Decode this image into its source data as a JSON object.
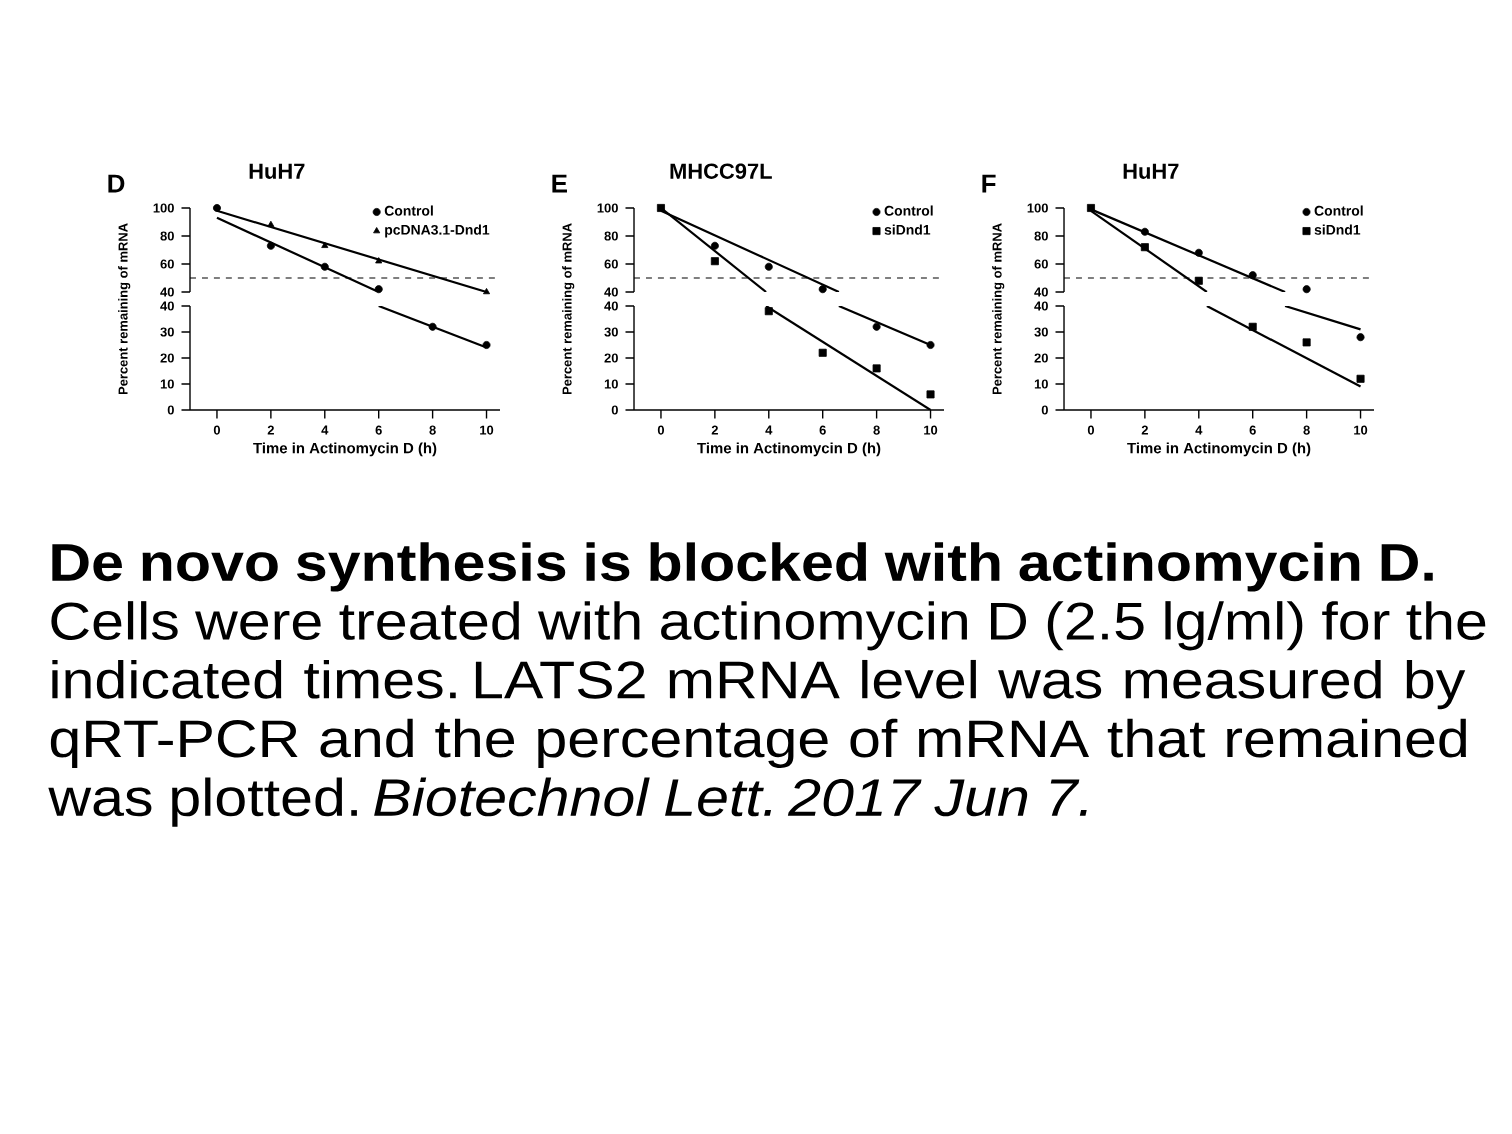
{
  "chart_data": [
    {
      "type": "scatter",
      "title": "HuH7",
      "annotations": [
        "D"
      ],
      "ylabel": "Percent remaining of mRNA",
      "xlim": [
        -1,
        10.5
      ],
      "ylim": [
        40,
        100
      ],
      "yticks": [
        40,
        60,
        80,
        100
      ],
      "tick_labels": "y",
      "legend": "top right",
      "ref_lines": [
        {
          "axis": "y",
          "value": 50,
          "color": "#000000",
          "line_style": "dashed"
        }
      ],
      "series": [
        {
          "name": "Control",
          "color": "#000000",
          "marker": "circle",
          "x": [
            0,
            2,
            4,
            6
          ],
          "values": [
            100,
            73,
            58,
            42
          ]
        },
        {
          "name": "pcDNA3.1-Dnd1",
          "color": "#000000",
          "marker": "triangle",
          "x": [
            2,
            4,
            6,
            10
          ],
          "values": [
            88,
            73,
            62,
            40
          ]
        },
        {
          "type": "line",
          "color": "#000000",
          "marker": "none",
          "x": [
            0,
            6
          ],
          "values": [
            93,
            40
          ]
        },
        {
          "type": "line",
          "color": "#000000",
          "marker": "none",
          "x": [
            0,
            10
          ],
          "values": [
            98,
            40
          ]
        }
      ]
    },
    {
      "type": "scatter",
      "xlabel": "Time in Actinomycin D (h)",
      "xlim": [
        -1,
        10.5
      ],
      "xticks": [
        0,
        2,
        4,
        6,
        8,
        10
      ],
      "ylim": [
        0,
        40
      ],
      "yticks": [
        0,
        10,
        20,
        30,
        40
      ],
      "series": [
        {
          "color": "#000000",
          "marker": "circle",
          "x": [
            8,
            10
          ],
          "values": [
            32,
            25
          ]
        },
        {
          "type": "line",
          "color": "#000000",
          "marker": "none",
          "x": [
            6,
            10
          ],
          "values": [
            40,
            24
          ]
        }
      ]
    },
    {
      "type": "scatter",
      "title": "MHCC97L",
      "annotations": [
        "E"
      ],
      "ylabel": "Percent remaining of mRNA",
      "xlim": [
        -1,
        10.5
      ],
      "ylim": [
        40,
        100
      ],
      "yticks": [
        40,
        60,
        80,
        100
      ],
      "tick_labels": "y",
      "legend": "top right",
      "ref_lines": [
        {
          "axis": "y",
          "value": 50,
          "color": "#000000",
          "line_style": "dashed"
        }
      ],
      "series": [
        {
          "name": "Control",
          "color": "#000000",
          "marker": "circle",
          "x": [
            2,
            4,
            6
          ],
          "values": [
            73,
            58,
            42
          ]
        },
        {
          "name": "siDnd1",
          "color": "#000000",
          "marker": "square",
          "x": [
            0,
            2
          ],
          "values": [
            100,
            62
          ]
        },
        {
          "type": "line",
          "color": "#000000",
          "marker": "none",
          "x": [
            0,
            6.6
          ],
          "values": [
            98,
            40
          ]
        },
        {
          "type": "line",
          "color": "#000000",
          "marker": "none",
          "x": [
            0,
            3.9
          ],
          "values": [
            100,
            40
          ]
        }
      ]
    },
    {
      "type": "scatter",
      "xlabel": "Time in Actinomycin D (h)",
      "xlim": [
        -1,
        10.5
      ],
      "xticks": [
        0,
        2,
        4,
        6,
        8,
        10
      ],
      "ylim": [
        0,
        40
      ],
      "yticks": [
        0,
        10,
        20,
        30,
        40
      ],
      "series": [
        {
          "color": "#000000",
          "marker": "circle",
          "x": [
            8,
            10
          ],
          "values": [
            32,
            25
          ]
        },
        {
          "color": "#000000",
          "marker": "square",
          "x": [
            4,
            6,
            8,
            10
          ],
          "values": [
            38,
            22,
            16,
            6
          ]
        },
        {
          "type": "line",
          "color": "#000000",
          "marker": "none",
          "x": [
            6.6,
            10
          ],
          "values": [
            40,
            25
          ]
        },
        {
          "type": "line",
          "color": "#000000",
          "marker": "none",
          "x": [
            3.9,
            10
          ],
          "values": [
            40,
            0
          ]
        }
      ]
    },
    {
      "type": "scatter",
      "title": "HuH7",
      "annotations": [
        "F"
      ],
      "ylabel": "Percent remaining of mRNA",
      "xlim": [
        -1,
        10.5
      ],
      "ylim": [
        40,
        100
      ],
      "yticks": [
        40,
        60,
        80,
        100
      ],
      "tick_labels": "y",
      "legend": "top right",
      "ref_lines": [
        {
          "axis": "y",
          "value": 50,
          "color": "#000000",
          "line_style": "dashed"
        }
      ],
      "series": [
        {
          "name": "Control",
          "color": "#000000",
          "marker": "circle",
          "x": [
            2,
            4,
            6,
            8
          ],
          "values": [
            83,
            68,
            52,
            42
          ]
        },
        {
          "name": "siDnd1",
          "color": "#000000",
          "marker": "square",
          "x": [
            0,
            2,
            4
          ],
          "values": [
            100,
            72,
            48
          ]
        },
        {
          "type": "line",
          "color": "#000000",
          "marker": "none",
          "x": [
            0,
            7.2
          ],
          "values": [
            99,
            40
          ]
        },
        {
          "type": "line",
          "color": "#000000",
          "marker": "none",
          "x": [
            0,
            4.3
          ],
          "values": [
            98,
            40
          ]
        }
      ]
    },
    {
      "type": "scatter",
      "xlabel": "Time in Actinomycin D (h)",
      "xlim": [
        -1,
        10.5
      ],
      "xticks": [
        0,
        2,
        4,
        6,
        8,
        10
      ],
      "ylim": [
        0,
        40
      ],
      "yticks": [
        0,
        10,
        20,
        30,
        40
      ],
      "series": [
        {
          "color": "#000000",
          "marker": "circle",
          "x": [
            10
          ],
          "values": [
            28
          ]
        },
        {
          "color": "#000000",
          "marker": "square",
          "x": [
            6,
            8,
            10
          ],
          "values": [
            32,
            26,
            12
          ]
        },
        {
          "type": "line",
          "color": "#000000",
          "marker": "none",
          "x": [
            7.2,
            10
          ],
          "values": [
            40,
            31
          ]
        },
        {
          "type": "line",
          "color": "#000000",
          "marker": "none",
          "x": [
            4.3,
            10
          ],
          "values": [
            40,
            9
          ]
        }
      ]
    },
    {
      "type": "other",
      "title": "De novo synthesis is blocked with actinomycin D.",
      "annotations": [
        "Cells were treated with actinomycin D (2.5 lg/ml) for the indicated times. LATS2 mRNA level was measured by qRT-PCR and the percentage of mRNA that remained was plotted. *Biotechnol Lett. 2017 Jun 7.*"
      ]
    }
  ]
}
